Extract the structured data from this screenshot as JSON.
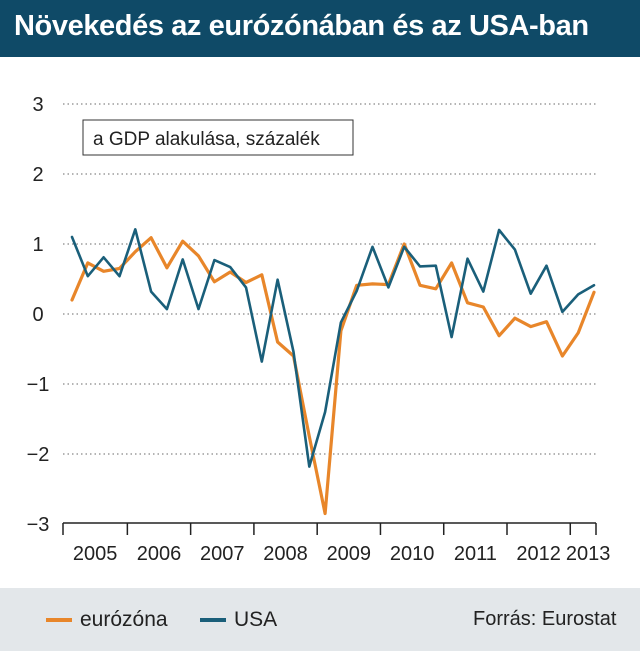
{
  "title": "Növekedés az eurózónában és az USA-ban",
  "source": "Forrás: Eurostat",
  "colors": {
    "eurozone": "#e8862a",
    "usa": "#1a5f7a",
    "header": "#0f4a67",
    "footer": "#e3e7ea"
  },
  "chart_data": {
    "type": "line",
    "subtitle": "a GDP alakulása, százalék",
    "ylim": [
      -3,
      3
    ],
    "y_ticks": [
      "3",
      "2",
      "1",
      "0",
      "−1",
      "−2",
      "−3"
    ],
    "year_labels": [
      "2005",
      "2006",
      "2007",
      "2008",
      "2009",
      "2010",
      "2011",
      "2012",
      "2013"
    ],
    "x": [
      "2005 Q1",
      "2005 Q2",
      "2005 Q3",
      "2005 Q4",
      "2006 Q1",
      "2006 Q2",
      "2006 Q3",
      "2006 Q4",
      "2007 Q1",
      "2007 Q2",
      "2007 Q3",
      "2007 Q4",
      "2008 Q1",
      "2008 Q2",
      "2008 Q3",
      "2008 Q4",
      "2009 Q1",
      "2009 Q2",
      "2009 Q3",
      "2009 Q4",
      "2010 Q1",
      "2010 Q2",
      "2010 Q3",
      "2010 Q4",
      "2011 Q1",
      "2011 Q2",
      "2011 Q3",
      "2011 Q4",
      "2012 Q1",
      "2012 Q2",
      "2012 Q3",
      "2012 Q4",
      "2013 Q1",
      "2013 Q2"
    ],
    "series": [
      {
        "name": "eurózóna",
        "values": [
          0.2,
          0.73,
          0.61,
          0.65,
          0.89,
          1.09,
          0.66,
          1.04,
          0.83,
          0.46,
          0.6,
          0.45,
          0.56,
          -0.4,
          -0.6,
          -1.75,
          -2.85,
          -0.24,
          0.41,
          0.43,
          0.42,
          1.0,
          0.41,
          0.36,
          0.73,
          0.16,
          0.1,
          -0.31,
          -0.06,
          -0.18,
          -0.11,
          -0.6,
          -0.27,
          0.31
        ]
      },
      {
        "name": "USA",
        "values": [
          1.1,
          0.54,
          0.81,
          0.54,
          1.21,
          0.32,
          0.07,
          0.78,
          0.07,
          0.77,
          0.67,
          0.38,
          -0.68,
          0.49,
          -0.54,
          -2.18,
          -1.4,
          -0.12,
          0.33,
          0.96,
          0.38,
          0.96,
          0.68,
          0.69,
          -0.33,
          0.79,
          0.32,
          1.2,
          0.92,
          0.29,
          0.69,
          0.03,
          0.28,
          0.41
        ]
      }
    ]
  }
}
